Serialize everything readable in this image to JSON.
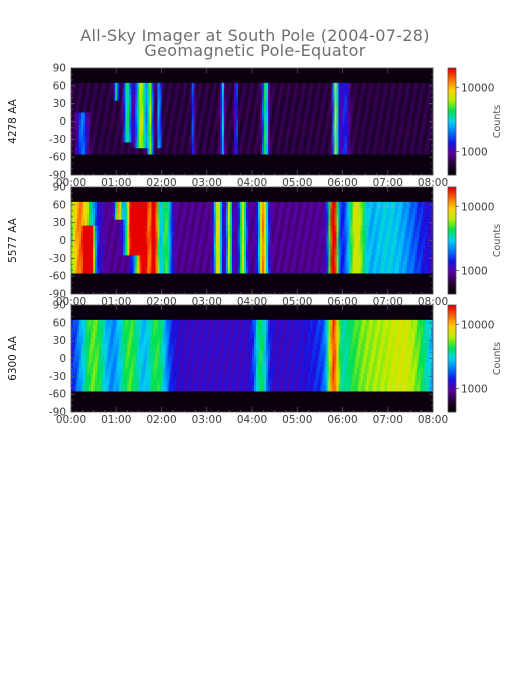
{
  "figure": {
    "title_line1": "All-Sky Imager at South Pole (2004-07-28)",
    "title_line2": "Geomagnetic Pole-Equator"
  },
  "colors": {
    "background_dark": "#0a000f",
    "purple_floor": "#3c0a6e",
    "colormap": [
      "#000000",
      "#2a003c",
      "#5a00a0",
      "#1414e6",
      "#0078ff",
      "#00d2f0",
      "#00e150",
      "#b4f000",
      "#ffd200",
      "#ff6e00",
      "#e60000"
    ]
  },
  "chart_data": [
    {
      "type": "heatmap",
      "panel": "4278",
      "ylabel": "4278 AA",
      "x_ticks": [
        "00:00",
        "01:00",
        "02:00",
        "03:00",
        "04:00",
        "05:00",
        "06:00",
        "07:00",
        "08:00"
      ],
      "xlim": [
        "00:00",
        "08:00"
      ],
      "y_ticks": [
        "90",
        "60",
        "30",
        "0",
        "-30",
        "-60",
        "-90"
      ],
      "ylim": [
        -90,
        90
      ],
      "coverage": [
        -55,
        65
      ],
      "colorbar_label": "Counts",
      "colorbar_ticks": [
        "10000",
        "1000"
      ],
      "base": 0.1,
      "vertical_streaks": [
        {
          "t": 0.25,
          "w": 0.12,
          "amp": 0.3,
          "lat": [
            -50,
            10
          ]
        },
        {
          "t": 1.0,
          "w": 0.05,
          "amp": 0.45,
          "lat": [
            40,
            65
          ]
        },
        {
          "t": 1.25,
          "w": 0.08,
          "amp": 0.5,
          "lat": [
            -30,
            65
          ]
        },
        {
          "t": 1.55,
          "w": 0.12,
          "amp": 0.62,
          "lat": [
            -40,
            65
          ]
        },
        {
          "t": 1.75,
          "w": 0.06,
          "amp": 0.55,
          "lat": [
            -50,
            65
          ]
        },
        {
          "t": 1.95,
          "w": 0.04,
          "amp": 0.4,
          "lat": [
            -40,
            65
          ]
        },
        {
          "t": 2.7,
          "w": 0.03,
          "amp": 0.28,
          "lat": [
            -55,
            65
          ]
        },
        {
          "t": 3.35,
          "w": 0.04,
          "amp": 0.38,
          "lat": [
            -55,
            65
          ]
        },
        {
          "t": 3.65,
          "w": 0.03,
          "amp": 0.3,
          "lat": [
            -55,
            65
          ]
        },
        {
          "t": 4.3,
          "w": 0.07,
          "amp": 0.5,
          "lat": [
            -55,
            65
          ]
        },
        {
          "t": 5.85,
          "w": 0.06,
          "amp": 0.6,
          "lat": [
            -55,
            65
          ]
        },
        {
          "t": 6.05,
          "w": 0.1,
          "amp": 0.22,
          "lat": [
            -55,
            65
          ]
        }
      ]
    },
    {
      "type": "heatmap",
      "panel": "5577",
      "ylabel": "5577 AA",
      "x_ticks": [
        "00:00",
        "01:00",
        "02:00",
        "03:00",
        "04:00",
        "05:00",
        "06:00",
        "07:00",
        "08:00"
      ],
      "xlim": [
        "00:00",
        "08:00"
      ],
      "y_ticks": [
        "90",
        "60",
        "30",
        "0",
        "-30",
        "-60",
        "-90"
      ],
      "ylim": [
        -90,
        90
      ],
      "coverage": [
        -55,
        65
      ],
      "colorbar_label": "Counts",
      "colorbar_ticks": [
        "10000",
        "1000"
      ],
      "base": 0.18,
      "vertical_streaks": [
        {
          "t": 0.2,
          "w": 0.3,
          "amp": 0.7,
          "lat": [
            -55,
            65
          ]
        },
        {
          "t": 0.4,
          "w": 0.1,
          "amp": 0.85,
          "lat": [
            -55,
            20
          ]
        },
        {
          "t": 1.05,
          "w": 0.08,
          "amp": 0.65,
          "lat": [
            40,
            65
          ]
        },
        {
          "t": 1.35,
          "w": 0.15,
          "amp": 0.8,
          "lat": [
            -20,
            65
          ]
        },
        {
          "t": 1.6,
          "w": 0.18,
          "amp": 0.9,
          "lat": [
            -50,
            65
          ]
        },
        {
          "t": 1.85,
          "w": 0.1,
          "amp": 0.75,
          "lat": [
            -55,
            65
          ]
        },
        {
          "t": 2.1,
          "w": 0.12,
          "amp": 0.45,
          "lat": [
            -55,
            65
          ]
        },
        {
          "t": 3.25,
          "w": 0.08,
          "amp": 0.6,
          "lat": [
            -55,
            65
          ]
        },
        {
          "t": 3.5,
          "w": 0.06,
          "amp": 0.55,
          "lat": [
            -55,
            65
          ]
        },
        {
          "t": 3.8,
          "w": 0.08,
          "amp": 0.55,
          "lat": [
            -55,
            65
          ]
        },
        {
          "t": 4.25,
          "w": 0.1,
          "amp": 0.7,
          "lat": [
            -55,
            65
          ]
        },
        {
          "t": 5.8,
          "w": 0.1,
          "amp": 0.9,
          "lat": [
            -55,
            65
          ]
        },
        {
          "t": 6.3,
          "w": 0.2,
          "amp": 0.42,
          "lat": [
            -55,
            65
          ]
        },
        {
          "t": 7.0,
          "w": 0.8,
          "amp": 0.32,
          "lat": [
            -55,
            65
          ]
        }
      ]
    },
    {
      "type": "heatmap",
      "panel": "6300",
      "ylabel": "6300 AA",
      "x_ticks": [
        "00:00",
        "01:00",
        "02:00",
        "03:00",
        "04:00",
        "05:00",
        "06:00",
        "07:00",
        "08:00"
      ],
      "xlim": [
        "00:00",
        "08:00"
      ],
      "y_ticks": [
        "90",
        "60",
        "30",
        "0",
        "-30",
        "-60",
        "-90"
      ],
      "ylim": [
        -90,
        90
      ],
      "coverage": [
        -55,
        65
      ],
      "colorbar_label": "Counts",
      "colorbar_ticks": [
        "10000",
        "1000"
      ],
      "base": 0.25,
      "vertical_streaks": [
        {
          "t": 0.5,
          "w": 0.35,
          "amp": 0.4,
          "lat": [
            -55,
            65
          ]
        },
        {
          "t": 1.3,
          "w": 0.3,
          "amp": 0.38,
          "lat": [
            -55,
            65
          ]
        },
        {
          "t": 1.9,
          "w": 0.25,
          "amp": 0.36,
          "lat": [
            -55,
            65
          ]
        },
        {
          "t": 4.2,
          "w": 0.15,
          "amp": 0.35,
          "lat": [
            -55,
            65
          ]
        },
        {
          "t": 5.8,
          "w": 0.12,
          "amp": 0.5,
          "lat": [
            -55,
            65
          ]
        },
        {
          "t": 6.5,
          "w": 0.8,
          "amp": 0.4,
          "lat": [
            -55,
            65
          ]
        },
        {
          "t": 7.5,
          "w": 0.6,
          "amp": 0.38,
          "lat": [
            -55,
            65
          ]
        }
      ]
    }
  ]
}
